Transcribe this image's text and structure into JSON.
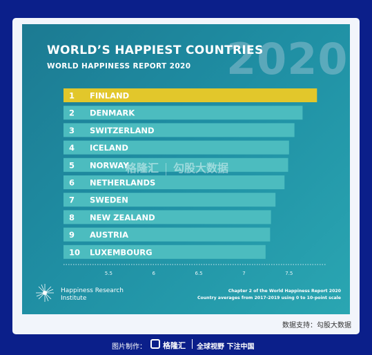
{
  "chart_data": {
    "type": "bar",
    "orientation": "horizontal",
    "title": "WORLD’S HAPPIEST COUNTRIES",
    "year": "2020",
    "subtitle": "WORLD HAPPINESS REPORT 2020",
    "ranks": [
      "1",
      "2",
      "3",
      "4",
      "5",
      "6",
      "7",
      "8",
      "9",
      "10"
    ],
    "categories": [
      "FINLAND",
      "DENMARK",
      "SWITZERLAND",
      "ICELAND",
      "NORWAY",
      "NETHERLANDS",
      "SWEDEN",
      "NEW ZEALAND",
      "AUSTRIA",
      "LUXEMBOURG"
    ],
    "values": [
      7.81,
      7.65,
      7.56,
      7.5,
      7.49,
      7.45,
      7.35,
      7.3,
      7.29,
      7.24
    ],
    "xlim": [
      5.0,
      7.8
    ],
    "xticks": [
      "5.5",
      "6",
      "6.5",
      "7",
      "7.5"
    ],
    "colors": {
      "top_bar": "#e2c72b",
      "bar": "#4cbcbf",
      "background_start": "#1c7a92",
      "background_end": "#2aa6b2"
    }
  },
  "footer_note": {
    "line1": "Chapter 2 of the World Happiness Report 2020",
    "line2": "Country averages from 2017-2019 using 0 to 10-point scale"
  },
  "org": {
    "name": "Happiness Research Institute",
    "logo_icon": "dandelion-icon"
  },
  "watermark": {
    "brand": "格隆汇",
    "data_brand": "勾股大数据"
  },
  "source": "数据支持：勾股大数据",
  "footer": {
    "made_by": "图片制作：",
    "brand": "格隆汇",
    "slogan": "全球视野 下注中国"
  }
}
